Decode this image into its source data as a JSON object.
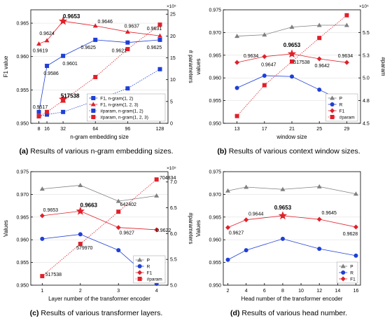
{
  "figures": [
    {
      "tag": "(a)",
      "caption": "Results of various n-gram embedding sizes."
    },
    {
      "tag": "(b)",
      "caption": "Results of various context window sizes."
    },
    {
      "tag": "(c)",
      "caption": "Results of various transformer layers."
    },
    {
      "tag": "(d)",
      "caption": "Results of various head number."
    }
  ],
  "chart_data": [
    {
      "type": "line",
      "xlabel": "n-gram embedding size",
      "ylabel": "F1 value",
      "y2label": "# parameters",
      "y2exp": "×10⁵",
      "x": [
        8,
        16,
        32,
        64,
        96,
        128
      ],
      "xlim": [
        0,
        136
      ],
      "ylim": [
        0.95,
        0.967
      ],
      "y2lim": [
        0,
        26
      ],
      "yticks": [
        0.95,
        0.955,
        0.96,
        0.965
      ],
      "y2ticks": [
        0,
        5,
        10,
        15,
        20,
        25
      ],
      "legend": "bottom-right",
      "series": [
        {
          "name": "F1, n-gram(1, 2)",
          "axis": "left",
          "color": "#1f3fd6",
          "marker": "square",
          "dashed": false,
          "values": [
            0.9517,
            0.9586,
            0.9601,
            0.9625,
            0.9621,
            0.9625
          ]
        },
        {
          "name": "F1, n-gram(1, 2, 3)",
          "axis": "left",
          "color": "#e0202a",
          "marker": "triangle",
          "dashed": false,
          "values": [
            0.9619,
            0.9624,
            0.9653,
            0.9646,
            0.9637,
            0.9631
          ]
        },
        {
          "name": "#param, n-gram(1, 2)",
          "axis": "right",
          "color": "#1f3fd6",
          "marker": "square",
          "dashed": true,
          "values": [
            1.6,
            2.0,
            2.6,
            5.2,
            8.0,
            12.4
          ]
        },
        {
          "name": "#param, n-gram(1, 2, 3)",
          "axis": "right",
          "color": "#e0202a",
          "marker": "square",
          "dashed": true,
          "values": [
            1.6,
            2.6,
            5.2,
            10.6,
            17.0,
            22.6
          ]
        }
      ],
      "annotations": [
        {
          "text": "0.9517",
          "x": 8,
          "y": 0.9517,
          "dx": 2,
          "dy": -5
        },
        {
          "text": "0.9586",
          "x": 16,
          "y": 0.9586,
          "dx": 6,
          "dy": 13
        },
        {
          "text": "0.9601",
          "x": 32,
          "y": 0.9601,
          "dx": 10,
          "dy": 13
        },
        {
          "text": "0.9625",
          "x": 64,
          "y": 0.9625,
          "dx": -10,
          "dy": 13
        },
        {
          "text": "0.9621",
          "x": 96,
          "y": 0.9621,
          "dx": -12,
          "dy": 14
        },
        {
          "text": "0.9625",
          "x": 128,
          "y": 0.9625,
          "dx": -8,
          "dy": 13
        },
        {
          "text": "0.9619",
          "x": 8,
          "y": 0.9619,
          "dx": 2,
          "dy": 12
        },
        {
          "text": "0.9624",
          "x": 16,
          "y": 0.9624,
          "dx": 0,
          "dy": -8
        },
        {
          "text": "0.9653",
          "x": 32,
          "y": 0.9653,
          "dx": 12,
          "dy": -4,
          "bold": true
        },
        {
          "text": "0.9646",
          "x": 64,
          "y": 0.9646,
          "dx": 14,
          "dy": -4
        },
        {
          "text": "0.9637",
          "x": 96,
          "y": 0.9637,
          "dx": 6,
          "dy": -6
        },
        {
          "text": "0.9631",
          "x": 128,
          "y": 0.9631,
          "dx": -8,
          "dy": -8
        },
        {
          "text": "517538",
          "x": 32,
          "y": 0.9536,
          "dx": 10,
          "dy": -2,
          "bold": true
        }
      ],
      "stars": [
        {
          "x": 32,
          "y": 0.9653
        },
        {
          "x": 32,
          "y": 0.9536
        }
      ]
    },
    {
      "type": "line",
      "xlabel": "window size",
      "ylabel": "values",
      "y2label": "#param",
      "y2exp": "×10⁵",
      "x": [
        13,
        17,
        21,
        25,
        29
      ],
      "xlim": [
        11,
        31
      ],
      "ylim": [
        0.95,
        0.975
      ],
      "y2lim": [
        4.5,
        5.75
      ],
      "yticks": [
        0.95,
        0.955,
        0.96,
        0.965,
        0.97,
        0.975
      ],
      "y2ticks": [
        4.5,
        4.75,
        5.0,
        5.25,
        5.5
      ],
      "legend": "bottom-right",
      "series": [
        {
          "name": "P",
          "axis": "left",
          "color": "#808080",
          "marker": "triangle",
          "dashed": false,
          "values": [
            0.9692,
            0.9695,
            0.9712,
            0.9716,
            0.9716
          ]
        },
        {
          "name": "R",
          "axis": "left",
          "color": "#1f3fd6",
          "marker": "circle",
          "dashed": false,
          "values": [
            0.9578,
            0.9605,
            0.9603,
            0.9574,
            0.9545
          ]
        },
        {
          "name": "F1",
          "axis": "left",
          "color": "#e0202a",
          "marker": "diamond",
          "dashed": false,
          "values": [
            0.9634,
            0.9647,
            0.9653,
            0.9642,
            0.9634
          ]
        },
        {
          "name": "#param",
          "axis": "right",
          "color": "#e0202a",
          "marker": "square",
          "dashed": true,
          "values": [
            4.58,
            4.92,
            5.18,
            5.44,
            5.69
          ]
        }
      ],
      "annotations": [
        {
          "text": "0.9634",
          "x": 13,
          "y": 0.9634,
          "dx": 20,
          "dy": -7
        },
        {
          "text": "0.9647",
          "x": 17,
          "y": 0.9647,
          "dx": 6,
          "dy": 14
        },
        {
          "text": "0.9653",
          "x": 21,
          "y": 0.9653,
          "dx": 0,
          "dy": -10,
          "bold": true
        },
        {
          "text": "517538",
          "x": 21,
          "y": 0.9653,
          "dx": 14,
          "dy": 14
        },
        {
          "text": "0.9642",
          "x": 25,
          "y": 0.9642,
          "dx": 4,
          "dy": 12
        },
        {
          "text": "0.9634",
          "x": 29,
          "y": 0.9634,
          "dx": -2,
          "dy": -7
        }
      ],
      "stars": [
        {
          "x": 21,
          "y": 0.9653
        }
      ]
    },
    {
      "type": "line",
      "xlabel": "Layer number of the transformer encoder",
      "ylabel": "Values",
      "y2label": "#parameters",
      "y2exp": "×10⁵",
      "x": [
        1,
        2,
        3,
        4
      ],
      "xlim": [
        0.7,
        4.3
      ],
      "ylim": [
        0.95,
        0.975
      ],
      "y2lim": [
        5.0,
        7.2
      ],
      "yticks": [
        0.95,
        0.955,
        0.96,
        0.965,
        0.97,
        0.975
      ],
      "y2ticks": [
        5.0,
        5.5,
        6.0,
        6.5,
        7.0
      ],
      "legend": "bottom-right",
      "series": [
        {
          "name": "P",
          "axis": "left",
          "color": "#808080",
          "marker": "triangle",
          "dashed": false,
          "values": [
            0.9712,
            0.972,
            0.9685,
            0.9697
          ]
        },
        {
          "name": "R",
          "axis": "left",
          "color": "#1f3fd6",
          "marker": "circle",
          "dashed": false,
          "values": [
            0.9602,
            0.9612,
            0.9577,
            0.9503
          ]
        },
        {
          "name": "F1",
          "axis": "left",
          "color": "#e0202a",
          "marker": "diamond",
          "dashed": false,
          "values": [
            0.9653,
            0.9663,
            0.9627,
            0.9622
          ]
        },
        {
          "name": "#param",
          "axis": "right",
          "color": "#e0202a",
          "marker": "square",
          "dashed": true,
          "values": [
            5.17538,
            5.7997,
            6.42402,
            7.04834
          ]
        }
      ],
      "annotations": [
        {
          "text": "0.9653",
          "x": 1,
          "y": 0.9653,
          "dx": 12,
          "dy": -6
        },
        {
          "text": "0.9663",
          "x": 2,
          "y": 0.9663,
          "dx": 12,
          "dy": -6,
          "bold": true
        },
        {
          "text": "0.9627",
          "x": 3,
          "y": 0.9627,
          "dx": 12,
          "dy": 10
        },
        {
          "text": "0.9622",
          "x": 4,
          "y": 0.9622,
          "dx": 10,
          "dy": 3
        },
        {
          "text": "517538",
          "x": 1,
          "y2": 5.17538,
          "dx": 16,
          "dy": 0
        },
        {
          "text": "579970",
          "x": 2,
          "y2": 5.7997,
          "dx": 6,
          "dy": 8
        },
        {
          "text": "642402",
          "x": 3,
          "y2": 6.42402,
          "dx": 14,
          "dy": -8
        },
        {
          "text": "704834",
          "x": 4,
          "y2": 7.04834,
          "dx": 16,
          "dy": 0
        }
      ],
      "stars": [
        {
          "x": 2,
          "y": 0.9663
        }
      ]
    },
    {
      "type": "line",
      "xlabel": "Head number of the transformer encoder",
      "ylabel": "Values",
      "x": [
        2,
        4,
        8,
        12,
        16
      ],
      "xlim": [
        1.5,
        16.5
      ],
      "ylim": [
        0.95,
        0.975
      ],
      "yticks": [
        0.95,
        0.955,
        0.96,
        0.965,
        0.97,
        0.975
      ],
      "xticks": [
        2,
        4,
        6,
        8,
        10,
        12,
        14,
        16
      ],
      "legend": "bottom-right",
      "series": [
        {
          "name": "P",
          "axis": "left",
          "color": "#808080",
          "marker": "triangle",
          "dashed": false,
          "values": [
            0.9708,
            0.9716,
            0.9711,
            0.9717,
            0.9701
          ]
        },
        {
          "name": "R",
          "axis": "left",
          "color": "#1f3fd6",
          "marker": "circle",
          "dashed": false,
          "values": [
            0.9556,
            0.9577,
            0.9602,
            0.958,
            0.9565
          ]
        },
        {
          "name": "F1",
          "axis": "left",
          "color": "#e0202a",
          "marker": "diamond",
          "dashed": false,
          "values": [
            0.9627,
            0.9644,
            0.9653,
            0.9645,
            0.9628
          ]
        }
      ],
      "annotations": [
        {
          "text": "0.9627",
          "x": 2,
          "y": 0.9627,
          "dx": 12,
          "dy": 10
        },
        {
          "text": "0.9644",
          "x": 4,
          "y": 0.9644,
          "dx": 14,
          "dy": -6
        },
        {
          "text": "0.9653",
          "x": 8,
          "y": 0.9653,
          "dx": 0,
          "dy": -9,
          "bold": true
        },
        {
          "text": "0.9645",
          "x": 12,
          "y": 0.9645,
          "dx": 14,
          "dy": -7
        },
        {
          "text": "0.9628",
          "x": 16,
          "y": 0.9628,
          "dx": -8,
          "dy": 12
        }
      ],
      "stars": [
        {
          "x": 8,
          "y": 0.9653
        }
      ]
    }
  ]
}
